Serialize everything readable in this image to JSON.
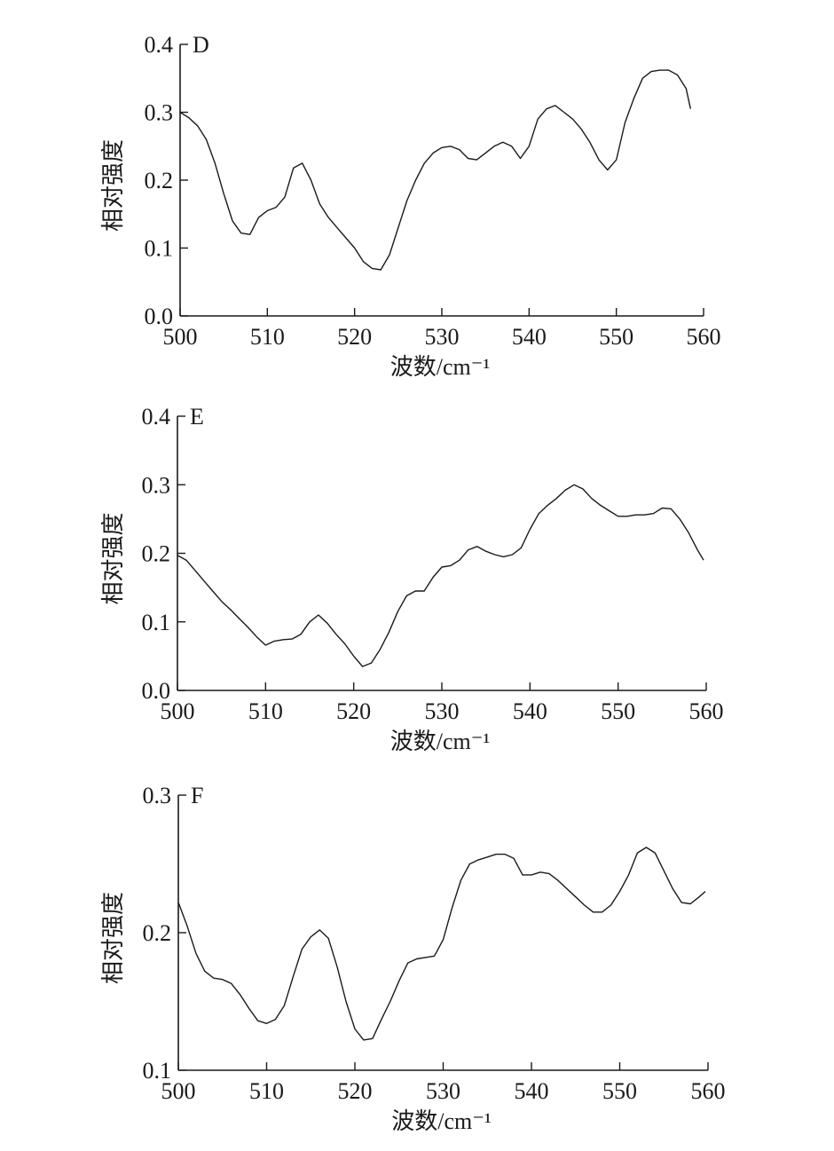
{
  "chart_data": [
    {
      "type": "line",
      "title": "D",
      "xlabel": "波数/cm⁻¹",
      "ylabel": "相对强度",
      "xlim": [
        500,
        560
      ],
      "ylim": [
        0.0,
        0.4
      ],
      "xticks": [
        "500",
        "510",
        "520",
        "530",
        "540",
        "550",
        "560"
      ],
      "yticks": [
        "0.0",
        "0.1",
        "0.2",
        "0.3",
        "0.4"
      ],
      "grid": false,
      "series": [
        {
          "x": [
            500,
            501,
            502,
            503,
            504,
            505,
            506,
            507,
            508,
            509,
            510,
            511,
            512,
            513,
            514,
            515,
            516,
            517,
            518,
            519,
            520,
            521,
            522,
            523,
            524,
            525,
            526,
            527,
            528,
            529,
            530,
            531,
            532,
            533,
            534,
            535,
            536,
            537,
            538,
            539,
            540,
            541,
            542,
            543,
            544,
            545,
            546,
            547,
            548,
            549,
            550,
            551,
            552,
            553,
            554,
            555,
            556,
            557,
            558,
            558.5
          ],
          "y": [
            0.3,
            0.292,
            0.28,
            0.26,
            0.225,
            0.18,
            0.14,
            0.122,
            0.12,
            0.145,
            0.155,
            0.16,
            0.175,
            0.218,
            0.225,
            0.2,
            0.165,
            0.145,
            0.13,
            0.115,
            0.1,
            0.08,
            0.07,
            0.068,
            0.09,
            0.13,
            0.17,
            0.2,
            0.225,
            0.24,
            0.248,
            0.25,
            0.245,
            0.232,
            0.23,
            0.24,
            0.25,
            0.256,
            0.25,
            0.232,
            0.25,
            0.29,
            0.305,
            0.31,
            0.3,
            0.29,
            0.275,
            0.255,
            0.23,
            0.215,
            0.23,
            0.285,
            0.32,
            0.35,
            0.36,
            0.362,
            0.362,
            0.355,
            0.335,
            0.305
          ]
        }
      ]
    },
    {
      "type": "line",
      "title": "E",
      "xlabel": "波数/cm⁻¹",
      "ylabel": "相对强度",
      "xlim": [
        500,
        560
      ],
      "ylim": [
        0.0,
        0.4
      ],
      "xticks": [
        "500",
        "510",
        "520",
        "530",
        "540",
        "550",
        "560"
      ],
      "yticks": [
        "0.0",
        "0.1",
        "0.2",
        "0.3",
        "0.4"
      ],
      "grid": false,
      "series": [
        {
          "x": [
            500,
            501,
            502,
            503,
            504,
            505,
            506,
            507,
            508,
            509,
            510,
            511,
            512,
            513,
            514,
            515,
            516,
            517,
            518,
            519,
            520,
            521,
            522,
            523,
            524,
            525,
            526,
            527,
            528,
            529,
            530,
            531,
            532,
            533,
            534,
            535,
            536,
            537,
            538,
            539,
            540,
            541,
            542,
            543,
            544,
            545,
            546,
            547,
            548,
            549,
            550,
            551,
            552,
            553,
            554,
            555,
            556,
            557,
            558,
            559,
            559.7
          ],
          "y": [
            0.197,
            0.19,
            0.175,
            0.16,
            0.145,
            0.13,
            0.118,
            0.105,
            0.092,
            0.078,
            0.066,
            0.072,
            0.074,
            0.075,
            0.082,
            0.1,
            0.11,
            0.098,
            0.082,
            0.068,
            0.05,
            0.035,
            0.04,
            0.06,
            0.085,
            0.115,
            0.138,
            0.145,
            0.145,
            0.165,
            0.18,
            0.182,
            0.19,
            0.205,
            0.21,
            0.203,
            0.198,
            0.195,
            0.198,
            0.208,
            0.235,
            0.258,
            0.27,
            0.28,
            0.292,
            0.3,
            0.294,
            0.28,
            0.27,
            0.262,
            0.254,
            0.254,
            0.256,
            0.256,
            0.258,
            0.266,
            0.265,
            0.25,
            0.23,
            0.205,
            0.19
          ]
        }
      ]
    },
    {
      "type": "line",
      "title": "F",
      "xlabel": "波数/cm⁻¹",
      "ylabel": "相对强度",
      "xlim": [
        500,
        560
      ],
      "ylim": [
        0.1,
        0.3
      ],
      "xticks": [
        "500",
        "510",
        "520",
        "530",
        "540",
        "550",
        "560"
      ],
      "yticks": [
        "0.1",
        "0.2",
        "0.3"
      ],
      "grid": false,
      "series": [
        {
          "x": [
            500,
            501,
            502,
            503,
            504,
            505,
            506,
            507,
            508,
            509,
            510,
            511,
            512,
            513,
            514,
            515,
            516,
            517,
            518,
            519,
            520,
            521,
            522,
            523,
            524,
            525,
            526,
            527,
            528,
            529,
            530,
            531,
            532,
            533,
            534,
            535,
            536,
            537,
            538,
            539,
            540,
            541,
            542,
            543,
            544,
            545,
            546,
            547,
            548,
            549,
            550,
            551,
            552,
            553,
            554,
            555,
            556,
            557,
            558,
            559,
            559.7
          ],
          "y": [
            0.222,
            0.205,
            0.185,
            0.172,
            0.167,
            0.166,
            0.163,
            0.155,
            0.145,
            0.136,
            0.134,
            0.137,
            0.147,
            0.168,
            0.188,
            0.197,
            0.202,
            0.196,
            0.175,
            0.15,
            0.13,
            0.122,
            0.123,
            0.137,
            0.15,
            0.165,
            0.178,
            0.181,
            0.182,
            0.183,
            0.195,
            0.218,
            0.238,
            0.25,
            0.253,
            0.255,
            0.257,
            0.257,
            0.254,
            0.242,
            0.242,
            0.244,
            0.243,
            0.238,
            0.232,
            0.226,
            0.22,
            0.215,
            0.215,
            0.22,
            0.23,
            0.242,
            0.258,
            0.262,
            0.258,
            0.245,
            0.232,
            0.222,
            0.221,
            0.226,
            0.23
          ]
        }
      ]
    }
  ]
}
